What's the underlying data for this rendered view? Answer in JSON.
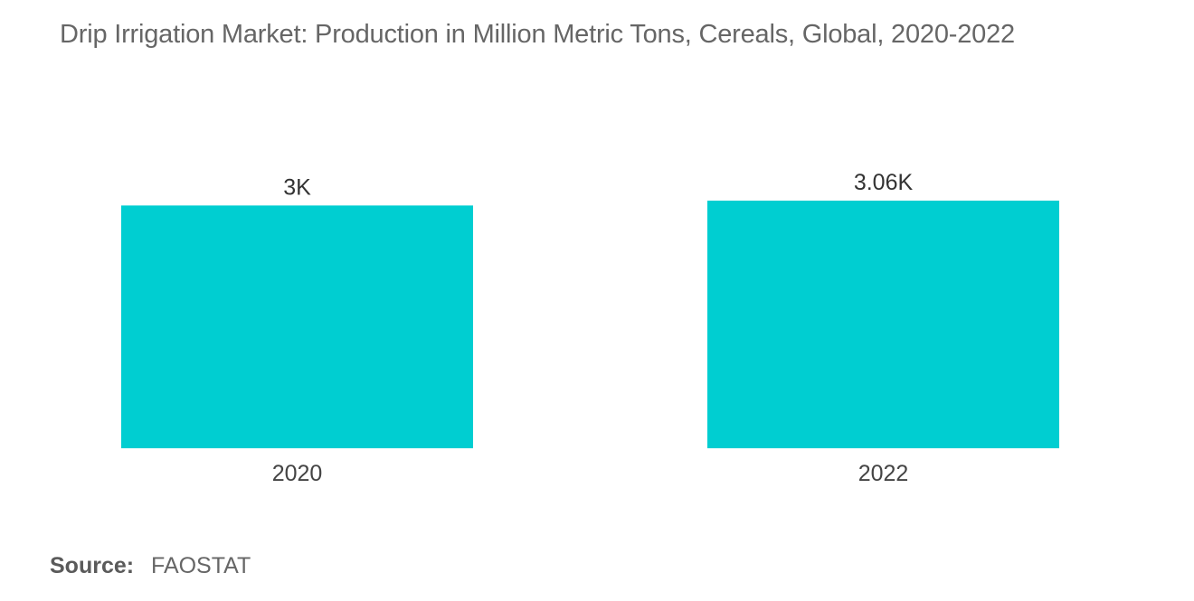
{
  "chart_data": {
    "type": "bar",
    "title": "Drip Irrigation Market: Production in Million Metric Tons, Cereals, Global, 2020-2022",
    "categories": [
      "2020",
      "2022"
    ],
    "values": [
      3000,
      3060
    ],
    "data_labels": [
      "3K",
      "3.06K"
    ],
    "xlabel": "",
    "ylabel": "",
    "ylim": [
      0,
      3060
    ],
    "grid": false,
    "bar_color": "#00ced1"
  },
  "source": {
    "label": "Source:",
    "value": "FAOSTAT"
  }
}
